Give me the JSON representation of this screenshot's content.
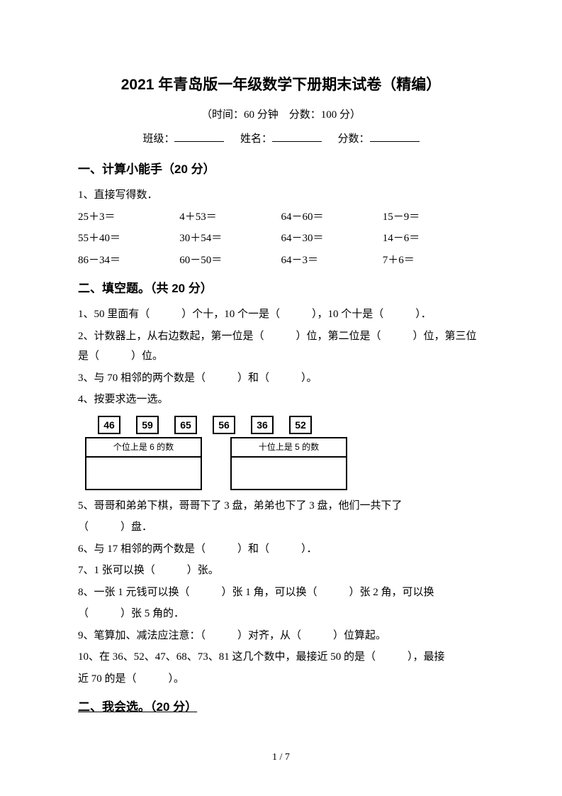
{
  "title": "2021 年青岛版一年级数学下册期末试卷（精编）",
  "subtitle": "（时间：60 分钟　分数：100 分）",
  "info": {
    "class_label": "班级：",
    "name_label": "姓名：",
    "score_label": "分数："
  },
  "s1": {
    "heading": "一、计算小能手（20 分）",
    "q1": "1、直接写得数．",
    "rows": [
      [
        "25＋3＝",
        "4＋53＝",
        "64－60＝",
        "15－9＝"
      ],
      [
        "55＋40＝",
        "30＋54＝",
        "64－30＝",
        "14－6＝"
      ],
      [
        "86－34＝",
        "60－50＝",
        "64－3＝",
        "7＋6＝"
      ]
    ]
  },
  "s2": {
    "heading": "二、填空题。（共 20 分）",
    "q1": "1、50 里面有（　　　）个十，10 个一是（　　　），10 个十是（　　　）．",
    "q2": "2、计数器上，从右边数起，第一位是（　　　）位，第二位是（　　　）位，第三位是（　　　）位。",
    "q3": "3、与 70 相邻的两个数是（　　　）和（　　　）。",
    "q4": "4、按要求选一选。",
    "nums": [
      "46",
      "59",
      "65",
      "56",
      "36",
      "52"
    ],
    "box1": "个位上是 6 的数",
    "box2": "十位上是 5 的数",
    "q5a": "5、哥哥和弟弟下棋，哥哥下了 3 盘，弟弟也下了 3 盘，他们一共下了",
    "q5b": "（　　　）盘．",
    "q6": "6、与 17 相邻的两个数是（　　　）和（　　　）．",
    "q7": "7、1 张可以换（　　　）张。",
    "q8a": "8、一张 1 元钱可以换（　　　）张 1 角，可以换（　　　）张 2 角，可以换",
    "q8b": "（　　　）张 5 角的．",
    "q9": "9、笔算加、减法应注意：（　　　）对齐，从（　　　）位算起。",
    "q10a": "10、在 36、52、47、68、73、81 这几个数中，最接近 50 的是（　　　），最接",
    "q10b": "近 70 的是（　　　）。"
  },
  "s3": {
    "heading": "二、我会选。（20 分）"
  },
  "pagenum": "1 / 7"
}
